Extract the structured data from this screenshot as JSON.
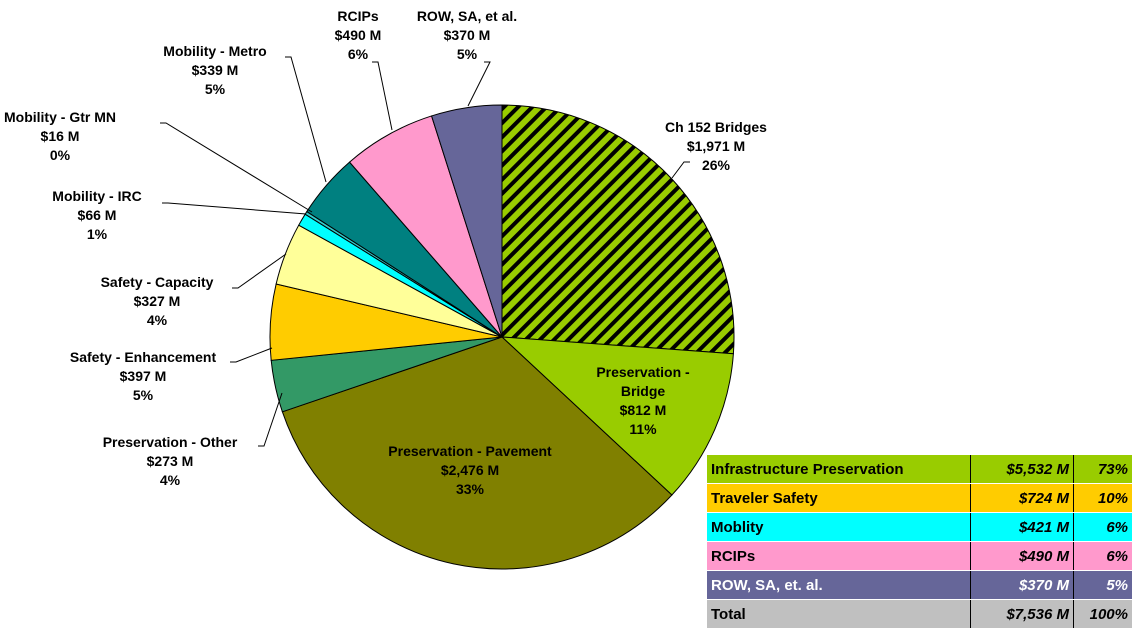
{
  "chart_data": {
    "type": "pie",
    "categories": [
      "Ch 152 Bridges",
      "Preservation - Bridge",
      "Preservation - Pavement",
      "Preservation - Other",
      "Safety - Enhancement",
      "Safety - Capacity",
      "Mobility - IRC",
      "Mobility - Gtr MN",
      "Mobility - Metro",
      "RCIPs",
      "ROW, SA, et al."
    ],
    "values": [
      1971,
      812,
      2476,
      273,
      397,
      327,
      66,
      16,
      339,
      490,
      370
    ],
    "value_labels": [
      "$1,971 M",
      "$812 M",
      "$2,476 M",
      "$273 M",
      "$397 M",
      "$327 M",
      "$66 M",
      "$16 M",
      "$339 M",
      "$490 M",
      "$370 M"
    ],
    "percents": [
      26,
      11,
      33,
      4,
      5,
      4,
      1,
      0,
      5,
      6,
      5
    ],
    "percent_labels": [
      "26%",
      "11%",
      "33%",
      "4%",
      "5%",
      "4%",
      "1%",
      "0%",
      "5%",
      "6%",
      "5%"
    ],
    "colors": [
      "#99cc00",
      "#99cc00",
      "#808000",
      "#339966",
      "#ffcc00",
      "#ffff99",
      "#00ffff",
      "#33cccc",
      "#008080",
      "#ff99cc",
      "#666699"
    ],
    "hatched": [
      true,
      false,
      false,
      false,
      false,
      false,
      false,
      false,
      false,
      false,
      false
    ],
    "start_angle": 0,
    "direction": "clockwise"
  },
  "table": {
    "rows": [
      {
        "label": "Infrastructure Preservation",
        "amount": "$5,532 M",
        "percent": "73%",
        "color": "#99cc00",
        "text_color": "#000000"
      },
      {
        "label": "Traveler Safety",
        "amount": "$724 M",
        "percent": "10%",
        "color": "#ffcc00",
        "text_color": "#000000"
      },
      {
        "label": "Moblity",
        "amount": "$421 M",
        "percent": "6%",
        "color": "#00ffff",
        "text_color": "#000000"
      },
      {
        "label": "RCIPs",
        "amount": "$490 M",
        "percent": "6%",
        "color": "#ff99cc",
        "text_color": "#000000"
      },
      {
        "label": "ROW, SA, et. al.",
        "amount": "$370 M",
        "percent": "5%",
        "color": "#666699",
        "text_color": "#ffffff"
      },
      {
        "label": "Total",
        "amount": "$7,536 M",
        "percent": "100%",
        "color": "#c0c0c0",
        "text_color": "#000000"
      }
    ]
  }
}
